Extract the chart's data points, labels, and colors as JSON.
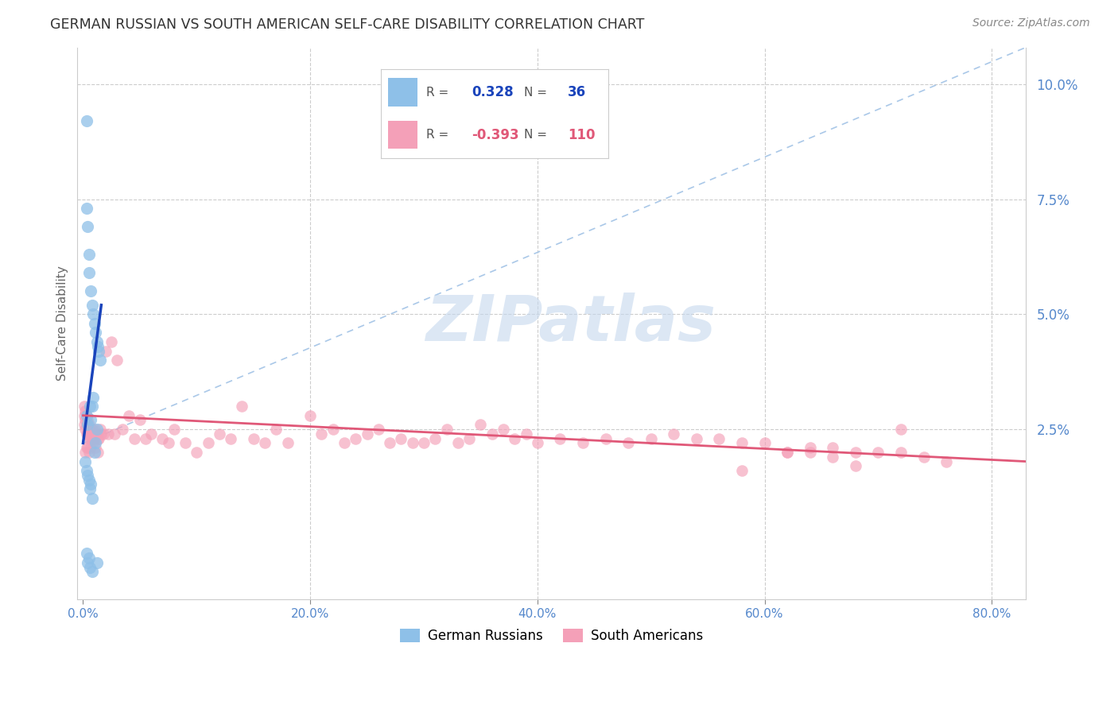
{
  "title": "GERMAN RUSSIAN VS SOUTH AMERICAN SELF-CARE DISABILITY CORRELATION CHART",
  "source": "Source: ZipAtlas.com",
  "ylabel": "Self-Care Disability",
  "watermark": "ZIPatlas",
  "xlim": [
    -0.005,
    0.83
  ],
  "ylim": [
    -0.012,
    0.108
  ],
  "xticks": [
    0.0,
    0.2,
    0.4,
    0.6,
    0.8
  ],
  "xtick_labels": [
    "0.0%",
    "20.0%",
    "40.0%",
    "60.0%",
    "80.0%"
  ],
  "yticks_right": [
    0.025,
    0.05,
    0.075,
    0.1
  ],
  "ytick_right_labels": [
    "2.5%",
    "5.0%",
    "7.5%",
    "10.0%"
  ],
  "color_blue": "#8ec0e8",
  "color_pink": "#f4a0b8",
  "color_blue_line": "#1a44bb",
  "color_pink_line": "#e05878",
  "color_dashed": "#aac8e8",
  "background": "#ffffff",
  "grid_color": "#cccccc",
  "title_color": "#333333",
  "axis_label_color": "#5588cc",
  "axis_tick_color": "#888888",
  "legend_box_color": "#dddddd",
  "gr_x": [
    0.003,
    0.003,
    0.004,
    0.005,
    0.005,
    0.007,
    0.008,
    0.009,
    0.01,
    0.011,
    0.012,
    0.013,
    0.014,
    0.015,
    0.003,
    0.004,
    0.006,
    0.007,
    0.008,
    0.009,
    0.01,
    0.011,
    0.012,
    0.002,
    0.003,
    0.004,
    0.005,
    0.006,
    0.007,
    0.008,
    0.003,
    0.004,
    0.005,
    0.006,
    0.008,
    0.012
  ],
  "gr_y": [
    0.092,
    0.073,
    0.069,
    0.063,
    0.059,
    0.055,
    0.052,
    0.05,
    0.048,
    0.046,
    0.044,
    0.043,
    0.042,
    0.04,
    0.028,
    0.026,
    0.03,
    0.027,
    0.03,
    0.032,
    0.02,
    0.022,
    0.025,
    0.018,
    0.016,
    0.015,
    0.014,
    0.012,
    0.013,
    0.01,
    -0.002,
    -0.004,
    -0.003,
    -0.005,
    -0.006,
    -0.004
  ],
  "sa_x": [
    0.001,
    0.001,
    0.001,
    0.002,
    0.002,
    0.002,
    0.003,
    0.003,
    0.003,
    0.004,
    0.004,
    0.004,
    0.005,
    0.005,
    0.006,
    0.006,
    0.007,
    0.007,
    0.008,
    0.008,
    0.009,
    0.009,
    0.01,
    0.01,
    0.01,
    0.012,
    0.013,
    0.014,
    0.015,
    0.016,
    0.018,
    0.02,
    0.022,
    0.025,
    0.028,
    0.03,
    0.035,
    0.04,
    0.045,
    0.05,
    0.055,
    0.06,
    0.07,
    0.075,
    0.08,
    0.09,
    0.1,
    0.11,
    0.12,
    0.13,
    0.14,
    0.15,
    0.16,
    0.17,
    0.18,
    0.2,
    0.21,
    0.22,
    0.23,
    0.24,
    0.25,
    0.26,
    0.27,
    0.28,
    0.29,
    0.3,
    0.31,
    0.32,
    0.33,
    0.34,
    0.35,
    0.36,
    0.37,
    0.38,
    0.39,
    0.4,
    0.42,
    0.44,
    0.46,
    0.48,
    0.5,
    0.52,
    0.54,
    0.56,
    0.58,
    0.6,
    0.62,
    0.64,
    0.66,
    0.68,
    0.7,
    0.72,
    0.74,
    0.76,
    0.72,
    0.58,
    0.62,
    0.64,
    0.66,
    0.68,
    0.006,
    0.008,
    0.009,
    0.011,
    0.013,
    0.004,
    0.002,
    0.003,
    0.005,
    0.007
  ],
  "sa_y": [
    0.03,
    0.028,
    0.026,
    0.029,
    0.027,
    0.025,
    0.028,
    0.026,
    0.024,
    0.027,
    0.025,
    0.024,
    0.026,
    0.025,
    0.025,
    0.024,
    0.024,
    0.023,
    0.025,
    0.024,
    0.024,
    0.023,
    0.025,
    0.024,
    0.023,
    0.024,
    0.023,
    0.023,
    0.025,
    0.024,
    0.024,
    0.042,
    0.024,
    0.044,
    0.024,
    0.04,
    0.025,
    0.028,
    0.023,
    0.027,
    0.023,
    0.024,
    0.023,
    0.022,
    0.025,
    0.022,
    0.02,
    0.022,
    0.024,
    0.023,
    0.03,
    0.023,
    0.022,
    0.025,
    0.022,
    0.028,
    0.024,
    0.025,
    0.022,
    0.023,
    0.024,
    0.025,
    0.022,
    0.023,
    0.022,
    0.022,
    0.023,
    0.025,
    0.022,
    0.023,
    0.026,
    0.024,
    0.025,
    0.023,
    0.024,
    0.022,
    0.023,
    0.022,
    0.023,
    0.022,
    0.023,
    0.024,
    0.023,
    0.023,
    0.022,
    0.022,
    0.02,
    0.021,
    0.021,
    0.02,
    0.02,
    0.02,
    0.019,
    0.018,
    0.025,
    0.016,
    0.02,
    0.02,
    0.019,
    0.017,
    0.023,
    0.023,
    0.022,
    0.021,
    0.02,
    0.021,
    0.02,
    0.021,
    0.02,
    0.021
  ],
  "blue_line_x": [
    0.0,
    0.016
  ],
  "blue_line_y": [
    0.022,
    0.052
  ],
  "dashed_line_x": [
    0.0,
    0.83
  ],
  "dashed_line_y": [
    0.022,
    0.108
  ],
  "pink_line_x": [
    0.0,
    0.83
  ],
  "pink_line_y": [
    0.028,
    0.018
  ]
}
